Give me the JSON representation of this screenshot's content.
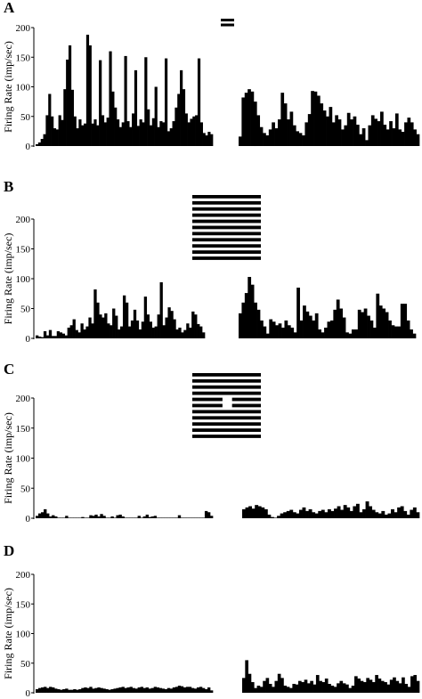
{
  "colors": {
    "bars": "#000000",
    "background": "#ffffff"
  },
  "chart_data": [
    {
      "panel": "A",
      "type": "bar",
      "ylabel": "Firing Rate (imp/sec)",
      "ylim": [
        0,
        200
      ],
      "yticks": [
        "0",
        "50",
        "100",
        "150",
        "200"
      ],
      "stimulus_icon": "two-bar-grating",
      "series": [
        {
          "values": [
            3,
            6,
            12,
            20,
            52,
            88,
            50,
            30,
            28,
            52,
            44,
            96,
            146,
            170,
            95,
            50,
            30,
            45,
            35,
            38,
            188,
            170,
            38,
            45,
            35,
            145,
            52,
            40,
            48,
            160,
            92,
            65,
            45,
            32,
            40,
            152,
            42,
            32,
            55,
            128,
            34,
            45,
            40,
            150,
            62,
            35,
            47,
            100,
            32,
            42,
            40,
            148,
            25,
            30,
            42,
            65,
            88,
            128,
            96,
            55,
            40,
            46,
            50,
            52,
            148,
            40,
            22,
            18,
            24,
            20
          ]
        },
        {
          "values": [
            16,
            82,
            90,
            96,
            92,
            75,
            52,
            32,
            22,
            18,
            28,
            40,
            30,
            45,
            90,
            72,
            45,
            58,
            35,
            25,
            22,
            18,
            40,
            54,
            93,
            92,
            85,
            72,
            60,
            50,
            66,
            40,
            52,
            45,
            28,
            35,
            56,
            45,
            50,
            36,
            20,
            30,
            10,
            35,
            52,
            46,
            42,
            58,
            36,
            28,
            42,
            30,
            55,
            28,
            24,
            40,
            48,
            40,
            28,
            20
          ]
        }
      ]
    },
    {
      "panel": "B",
      "type": "bar",
      "ylabel": "Firing Rate (imp/sec)",
      "ylim": [
        0,
        200
      ],
      "yticks": [
        "0",
        "50",
        "100",
        "150",
        "200"
      ],
      "stimulus_icon": "full-grating",
      "series": [
        {
          "values": [
            5,
            3,
            2,
            12,
            5,
            14,
            4,
            4,
            12,
            10,
            8,
            5,
            18,
            22,
            32,
            14,
            10,
            25,
            15,
            20,
            35,
            25,
            82,
            60,
            40,
            35,
            42,
            25,
            22,
            50,
            38,
            15,
            20,
            72,
            60,
            20,
            30,
            48,
            30,
            15,
            28,
            70,
            40,
            28,
            18,
            20,
            40,
            94,
            22,
            35,
            52,
            46,
            32,
            15,
            18,
            10,
            14,
            25,
            18,
            45,
            40,
            24,
            20,
            10
          ]
        },
        {
          "values": [
            42,
            60,
            76,
            103,
            90,
            60,
            48,
            30,
            20,
            8,
            32,
            28,
            22,
            25,
            18,
            30,
            22,
            18,
            10,
            85,
            30,
            55,
            45,
            38,
            30,
            42,
            15,
            10,
            18,
            28,
            30,
            48,
            65,
            50,
            35,
            10,
            8,
            15,
            15,
            48,
            44,
            50,
            38,
            30,
            18,
            75,
            55,
            50,
            44,
            30,
            22,
            20,
            20,
            58,
            58,
            30,
            15,
            8
          ]
        }
      ]
    },
    {
      "panel": "C",
      "type": "bar",
      "ylabel": "Firing Rate (imp/sec)",
      "ylim": [
        0,
        200
      ],
      "yticks": [
        "0",
        "50",
        "100",
        "150",
        "200"
      ],
      "stimulus_icon": "grating-with-gap",
      "series": [
        {
          "values": [
            4,
            8,
            10,
            15,
            8,
            3,
            5,
            3,
            0,
            0,
            0,
            4,
            0,
            0,
            0,
            0,
            0,
            2,
            0,
            0,
            5,
            4,
            6,
            3,
            7,
            4,
            0,
            0,
            3,
            0,
            5,
            6,
            3,
            0,
            0,
            0,
            0,
            0,
            4,
            0,
            3,
            6,
            2,
            3,
            4,
            0,
            0,
            0,
            0,
            0,
            0,
            0,
            0,
            5,
            0,
            0,
            0,
            0,
            0,
            0,
            0,
            0,
            0,
            12,
            10,
            4
          ]
        },
        {
          "values": [
            15,
            18,
            20,
            16,
            22,
            20,
            18,
            15,
            6,
            2,
            0,
            4,
            8,
            10,
            12,
            14,
            10,
            8,
            14,
            18,
            12,
            15,
            10,
            8,
            12,
            14,
            10,
            15,
            12,
            16,
            20,
            14,
            22,
            18,
            12,
            20,
            24,
            10,
            15,
            28,
            20,
            14,
            10,
            8,
            12,
            6,
            8,
            15,
            10,
            18,
            20,
            12,
            6,
            14,
            18,
            10
          ]
        }
      ]
    },
    {
      "panel": "D",
      "type": "bar",
      "ylabel": "Firing Rate (imp/sec)",
      "ylim": [
        0,
        200
      ],
      "yticks": [
        "0",
        "50",
        "100",
        "150",
        "200"
      ],
      "stimulus_icon": "none",
      "series": [
        {
          "values": [
            6,
            8,
            9,
            10,
            8,
            10,
            9,
            7,
            6,
            5,
            6,
            7,
            5,
            5,
            6,
            5,
            6,
            8,
            9,
            8,
            10,
            7,
            8,
            9,
            8,
            7,
            6,
            5,
            6,
            7,
            8,
            9,
            10,
            8,
            9,
            10,
            8,
            7,
            9,
            10,
            8,
            9,
            7,
            8,
            10,
            9,
            8,
            7,
            6,
            8,
            7,
            9,
            10,
            12,
            11,
            9,
            10,
            10,
            8,
            7,
            9,
            10,
            8,
            6,
            9,
            4
          ]
        },
        {
          "values": [
            25,
            55,
            32,
            18,
            8,
            12,
            10,
            20,
            25,
            15,
            10,
            20,
            32,
            25,
            12,
            10,
            8,
            15,
            14,
            20,
            18,
            22,
            16,
            20,
            14,
            30,
            20,
            18,
            24,
            15,
            12,
            10,
            16,
            20,
            16,
            14,
            8,
            12,
            28,
            24,
            20,
            18,
            25,
            22,
            18,
            30,
            24,
            20,
            18,
            14,
            22,
            26,
            20,
            16,
            26,
            15,
            10,
            28,
            30,
            20
          ]
        }
      ]
    }
  ]
}
